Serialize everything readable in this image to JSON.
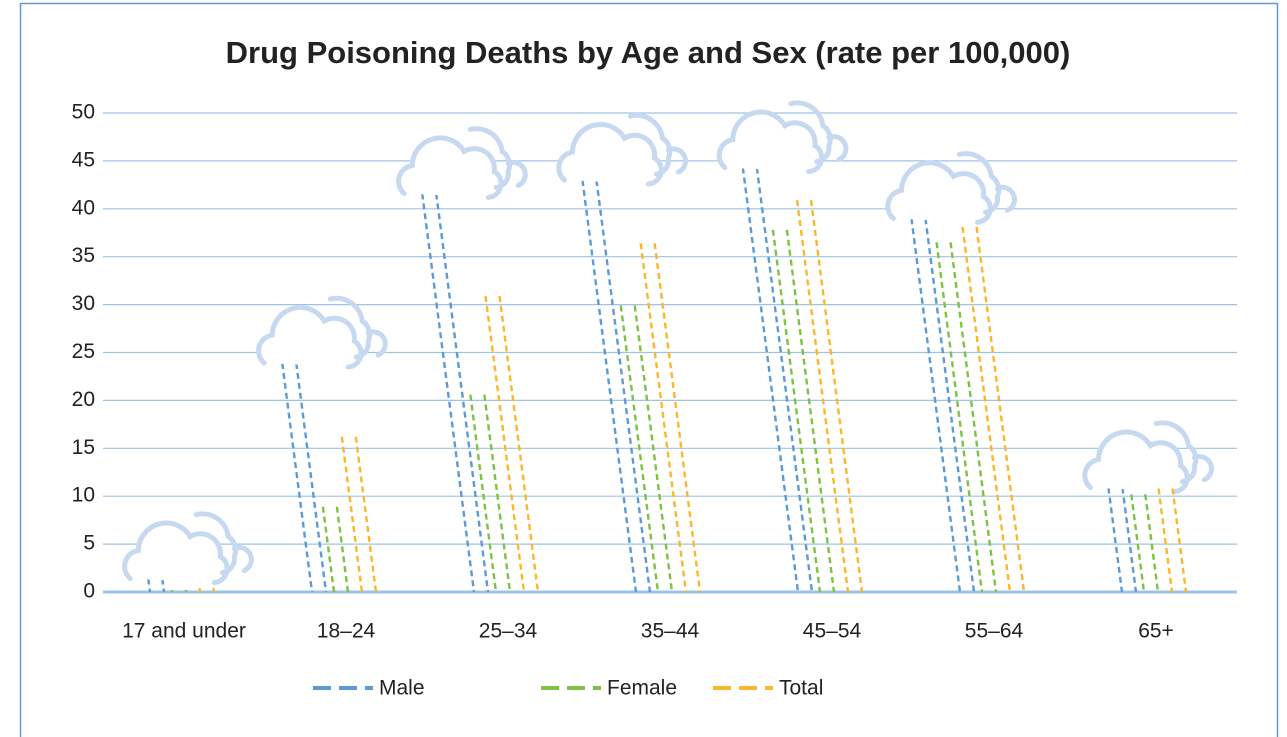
{
  "chart_data": {
    "type": "bar",
    "title": "Drug Poisoning Deaths by Age and Sex (rate per 100,000)",
    "categories": [
      "17 and under",
      "18–24",
      "25–34",
      "35–44",
      "45–54",
      "55–64",
      "65+"
    ],
    "series": [
      {
        "name": "Male",
        "color": "#5b9bd5",
        "values": [
          1.4,
          23.9,
          41.6,
          43.0,
          44.3,
          39.0,
          10.9
        ]
      },
      {
        "name": "Female",
        "color": "#7dc242",
        "values": [
          0.2,
          8.9,
          20.6,
          29.9,
          37.8,
          36.5,
          10.2
        ]
      },
      {
        "name": "Total",
        "color": "#fbb62c",
        "values": [
          0.4,
          16.2,
          30.9,
          36.4,
          40.9,
          38.1,
          10.8
        ]
      }
    ],
    "ylim": [
      0,
      50
    ],
    "yticks": [
      0,
      5,
      10,
      15,
      20,
      25,
      30,
      35,
      40,
      45,
      50
    ],
    "grid": true,
    "legend": "bottom"
  }
}
